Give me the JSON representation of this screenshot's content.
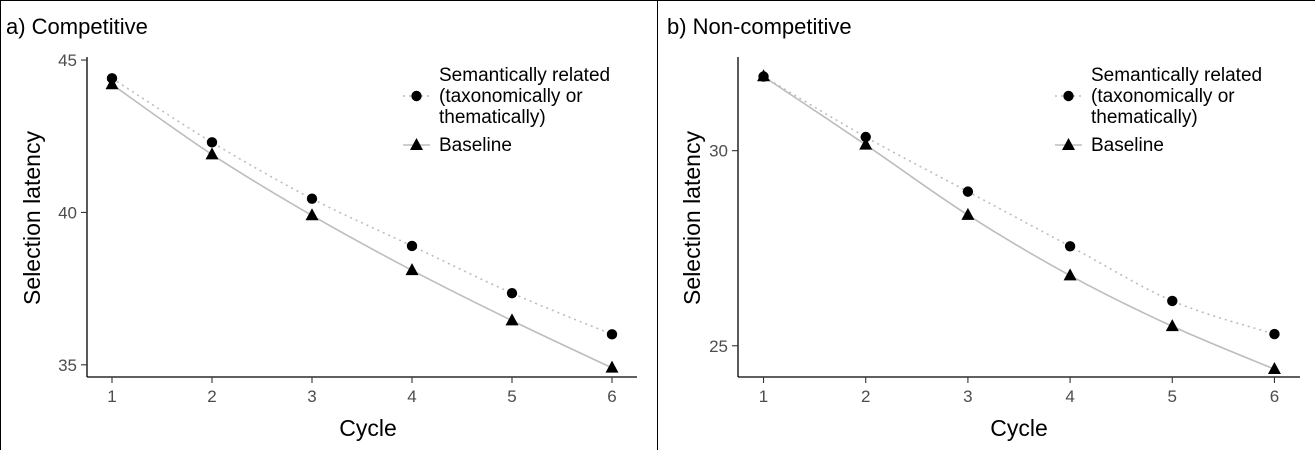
{
  "colors": {
    "points": "#000000",
    "related_line": "#bdbdbd",
    "baseline_line": "#bdbdbd",
    "axis": "#000000",
    "tick_text": "#4d4d4d",
    "frame": "#000000"
  },
  "legend": {
    "placement": "top-right",
    "items": [
      {
        "lines": [
          "Semantically related",
          "(taxonomically or",
          "thematically)"
        ],
        "marker": "circle",
        "line": "dotted"
      },
      {
        "lines": [
          "Baseline"
        ],
        "marker": "triangle",
        "line": "solid"
      }
    ]
  },
  "chart_data": [
    {
      "type": "line",
      "title": "a) Competitive",
      "xlabel": "Cycle",
      "ylabel": "Selection latency",
      "x": [
        1,
        2,
        3,
        4,
        5,
        6
      ],
      "x_ticks": [
        "1",
        "2",
        "3",
        "4",
        "5",
        "6"
      ],
      "y_ticks": [
        "35",
        "40",
        "45"
      ],
      "xlim": [
        0.75,
        6.25
      ],
      "ylim": [
        34.6,
        45.1
      ],
      "grid": false,
      "series": [
        {
          "name": "Semantically related (taxonomically or thematically)",
          "marker": "circle",
          "line": "dotted",
          "values": [
            44.4,
            42.3,
            40.45,
            38.9,
            37.35,
            36.0
          ]
        },
        {
          "name": "Baseline",
          "marker": "triangle",
          "line": "solid",
          "values": [
            44.2,
            41.9,
            39.9,
            38.1,
            36.45,
            34.9
          ]
        }
      ]
    },
    {
      "type": "line",
      "title": "b) Non-competitive",
      "xlabel": "Cycle",
      "ylabel": "Selection latency",
      "x": [
        1,
        2,
        3,
        4,
        5,
        6
      ],
      "x_ticks": [
        "1",
        "2",
        "3",
        "4",
        "5",
        "6"
      ],
      "y_ticks": [
        "25",
        "30"
      ],
      "xlim": [
        0.75,
        6.25
      ],
      "ylim": [
        24.2,
        32.4
      ],
      "grid": false,
      "series": [
        {
          "name": "Semantically related (taxonomically or thematically)",
          "marker": "circle",
          "line": "dotted",
          "values": [
            31.9,
            30.35,
            28.95,
            27.55,
            26.15,
            25.3
          ]
        },
        {
          "name": "Baseline",
          "marker": "triangle",
          "line": "solid",
          "values": [
            31.9,
            30.15,
            28.35,
            26.8,
            25.5,
            24.4
          ]
        }
      ]
    }
  ]
}
